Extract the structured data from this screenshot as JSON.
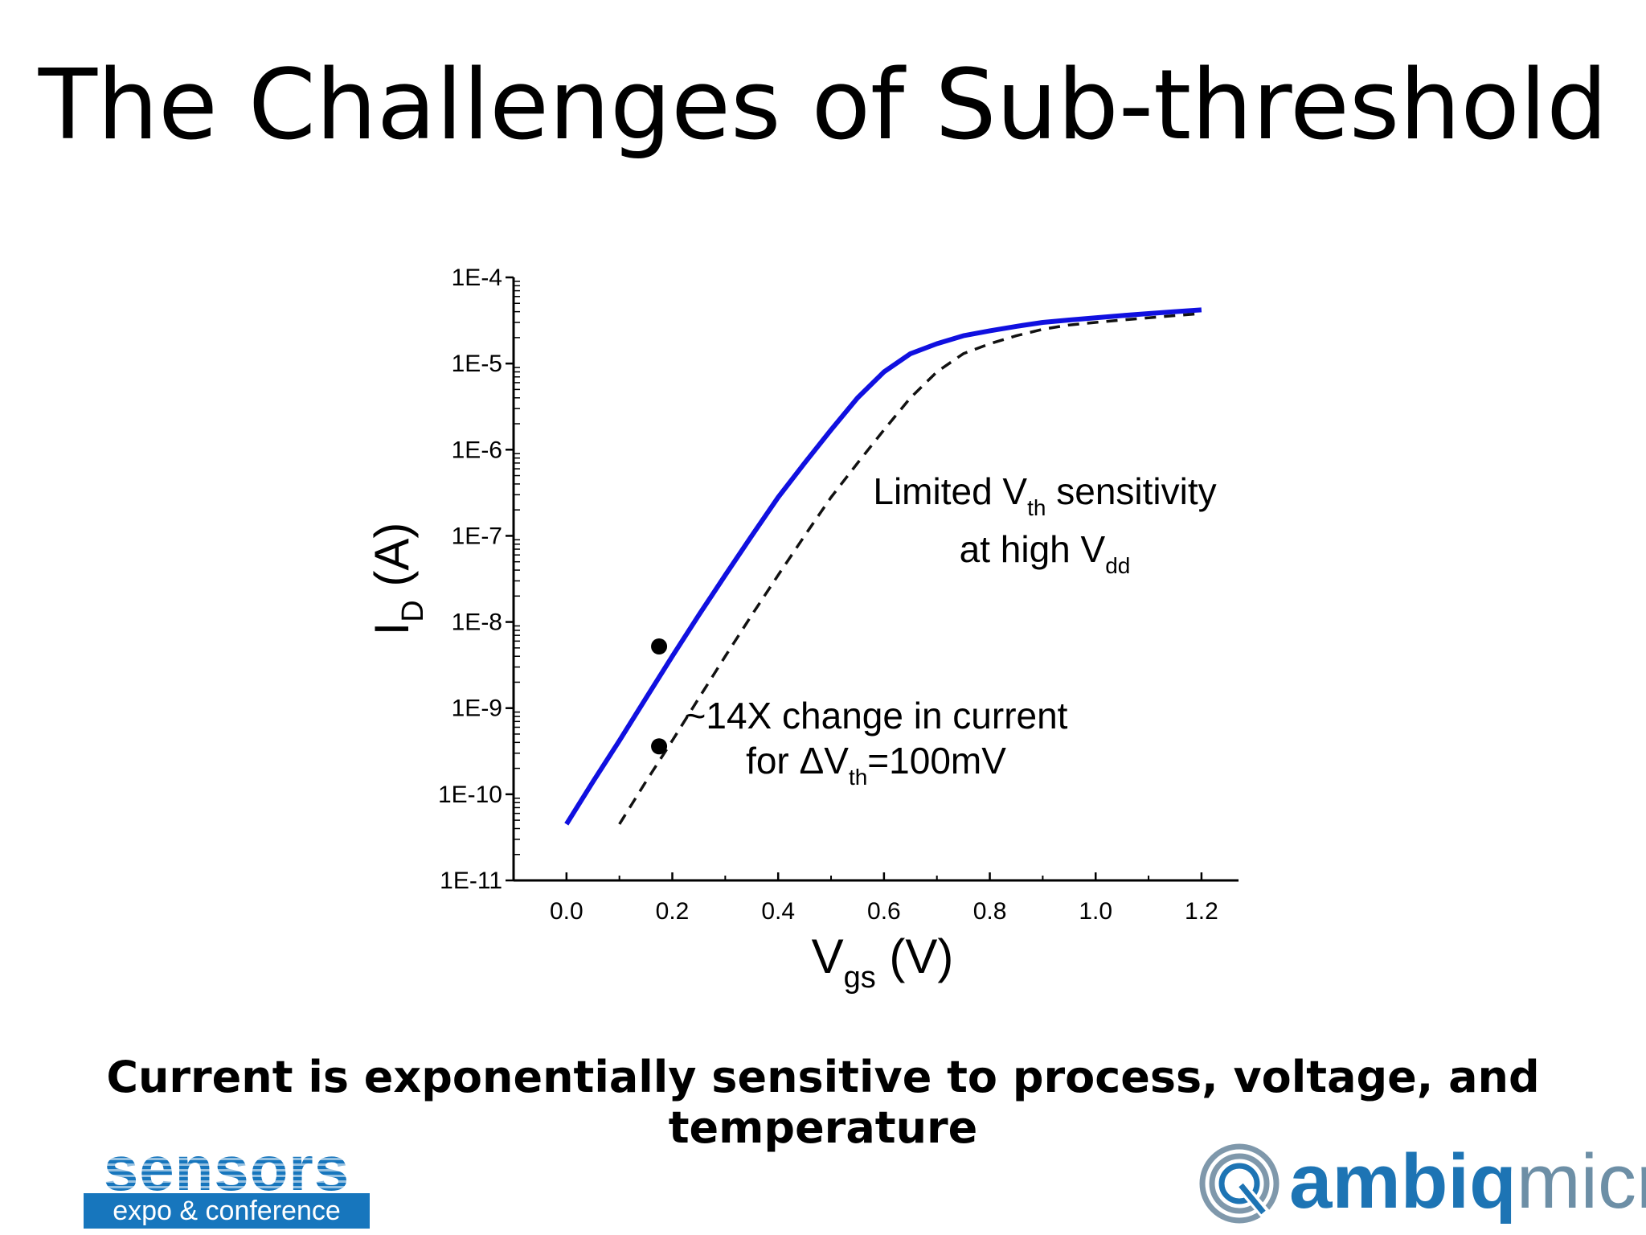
{
  "slide": {
    "title": "The Challenges of Sub-threshold",
    "caption": "Current is exponentially sensitive to process, voltage, and temperature"
  },
  "logos": {
    "sensors": {
      "word": "sensors",
      "subtitle": "expo & conference",
      "color": "#1776bd"
    },
    "ambiq": {
      "bold": "ambiq",
      "light": "micro",
      "color": "#1d74b4",
      "light_color": "#6d8fa6"
    }
  },
  "chart_data": {
    "type": "line",
    "title": "",
    "xlabel": {
      "main": "V",
      "sub": "gs",
      "unit": " (V)"
    },
    "ylabel": {
      "main": "I",
      "sub": "D",
      "unit": " (A)"
    },
    "xlim": [
      -0.1,
      1.27
    ],
    "ylim_log10": [
      -11,
      -4
    ],
    "y_scale": "log",
    "grid": false,
    "x_ticks": [
      0.0,
      0.2,
      0.4,
      0.6,
      0.8,
      1.0,
      1.2
    ],
    "x_tick_labels": [
      "0.0",
      "0.2",
      "0.4",
      "0.6",
      "0.8",
      "1.0",
      "1.2"
    ],
    "y_ticks_log10": [
      -4,
      -5,
      -6,
      -7,
      -8,
      -9,
      -10,
      -11
    ],
    "y_tick_labels": [
      "1E-4",
      "1E-5",
      "1E-6",
      "1E-7",
      "1E-8",
      "1E-9",
      "1E-10",
      "1E-11"
    ],
    "series": [
      {
        "style": "solid",
        "color": "#1010e0",
        "x": [
          0.0,
          0.05,
          0.1,
          0.15,
          0.2,
          0.25,
          0.3,
          0.35,
          0.4,
          0.45,
          0.5,
          0.55,
          0.6,
          0.65,
          0.7,
          0.75,
          0.8,
          0.85,
          0.9,
          0.95,
          1.0,
          1.05,
          1.1,
          1.15,
          1.2
        ],
        "y": [
          4.5e-11,
          1.4e-10,
          4.2e-10,
          1.3e-09,
          4e-09,
          1.2e-08,
          3.5e-08,
          1e-07,
          2.8e-07,
          7e-07,
          1.7e-06,
          4e-06,
          8e-06,
          1.3e-05,
          1.7e-05,
          2.1e-05,
          2.4e-05,
          2.7e-05,
          3e-05,
          3.2e-05,
          3.4e-05,
          3.6e-05,
          3.8e-05,
          4e-05,
          4.2e-05
        ]
      },
      {
        "style": "dashed",
        "color": "#111111",
        "x": [
          0.1,
          0.15,
          0.2,
          0.25,
          0.3,
          0.35,
          0.4,
          0.45,
          0.5,
          0.55,
          0.6,
          0.65,
          0.7,
          0.75,
          0.8,
          0.85,
          0.9,
          0.95,
          1.0,
          1.05,
          1.1,
          1.15,
          1.2
        ],
        "y": [
          4.5e-11,
          1.4e-10,
          4.2e-10,
          1.3e-09,
          4e-09,
          1.2e-08,
          3.5e-08,
          1e-07,
          2.8e-07,
          7e-07,
          1.7e-06,
          4e-06,
          8e-06,
          1.3e-05,
          1.7e-05,
          2.1e-05,
          2.5e-05,
          2.8e-05,
          3e-05,
          3.2e-05,
          3.4e-05,
          3.6e-05,
          3.8e-05
        ]
      }
    ],
    "markers": [
      {
        "x": 0.175,
        "y": 5.2e-09
      },
      {
        "x": 0.175,
        "y": 3.6e-10
      }
    ],
    "annotations": [
      {
        "id": "vth-sensitivity",
        "line1_pre": "Limited V",
        "line1_sub": "th",
        "line1_post": " sensitivity",
        "line2_pre": "at high V",
        "line2_sub": "dd"
      },
      {
        "id": "current-change",
        "line1": "~14X change in current",
        "line2_pre": "for ΔV",
        "line2_sub": "th",
        "line2_post": "=100mV"
      }
    ]
  }
}
